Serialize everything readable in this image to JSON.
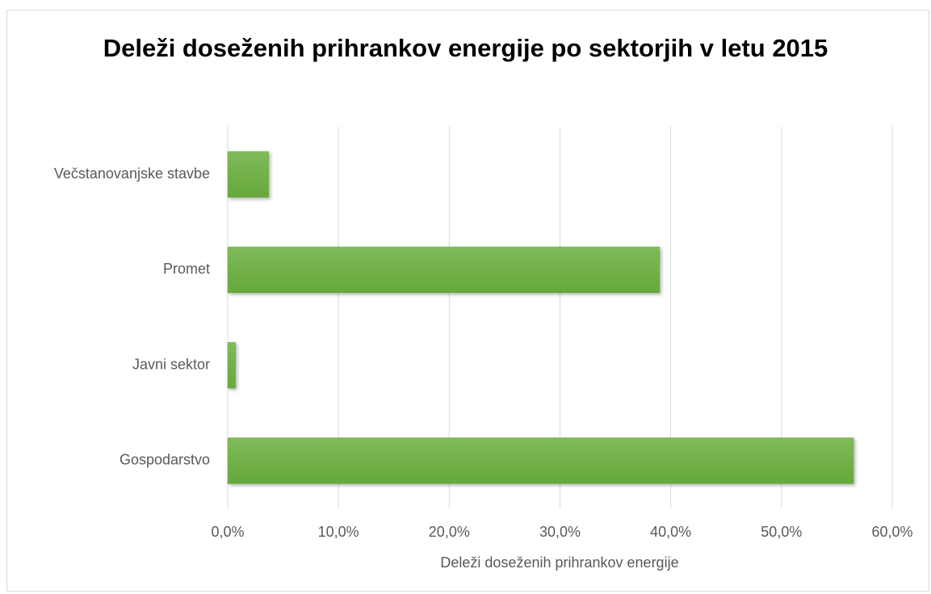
{
  "chart_data": {
    "type": "barh",
    "title": "Deleži doseženih prihrankov energije po sektorjih v letu 2015",
    "xlabel": "Deleži doseženih prihrankov energije",
    "categories": [
      "Večstanovanjske stavbe",
      "Promet",
      "Javni sektor",
      "Gospodarstvo"
    ],
    "values": [
      3.7,
      39.0,
      0.7,
      56.5
    ],
    "color": "#70ad47",
    "xlim": [
      0,
      60
    ],
    "xticks": [
      {
        "value": 0,
        "label": "0,0%"
      },
      {
        "value": 10,
        "label": "10,0%"
      },
      {
        "value": 20,
        "label": "20,0%"
      },
      {
        "value": 30,
        "label": "30,0%"
      },
      {
        "value": 40,
        "label": "40,0%"
      },
      {
        "value": 50,
        "label": "50,0%"
      },
      {
        "value": 60,
        "label": "60,0%"
      }
    ],
    "grid": true
  }
}
